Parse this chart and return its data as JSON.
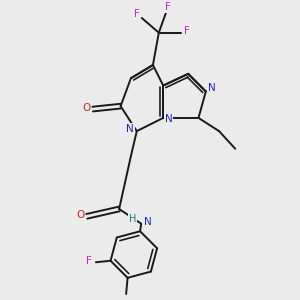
{
  "bg_color": "#ebebeb",
  "bond_color": "#1a1a1a",
  "bond_width": 1.4,
  "atom_colors": {
    "N": "#2222cc",
    "N_amide": "#227777",
    "O": "#cc2222",
    "F": "#cc22cc",
    "H": "#227777"
  },
  "figsize": [
    3.0,
    3.0
  ],
  "dpi": 100,
  "xlim": [
    0,
    10
  ],
  "ylim": [
    0,
    10
  ]
}
